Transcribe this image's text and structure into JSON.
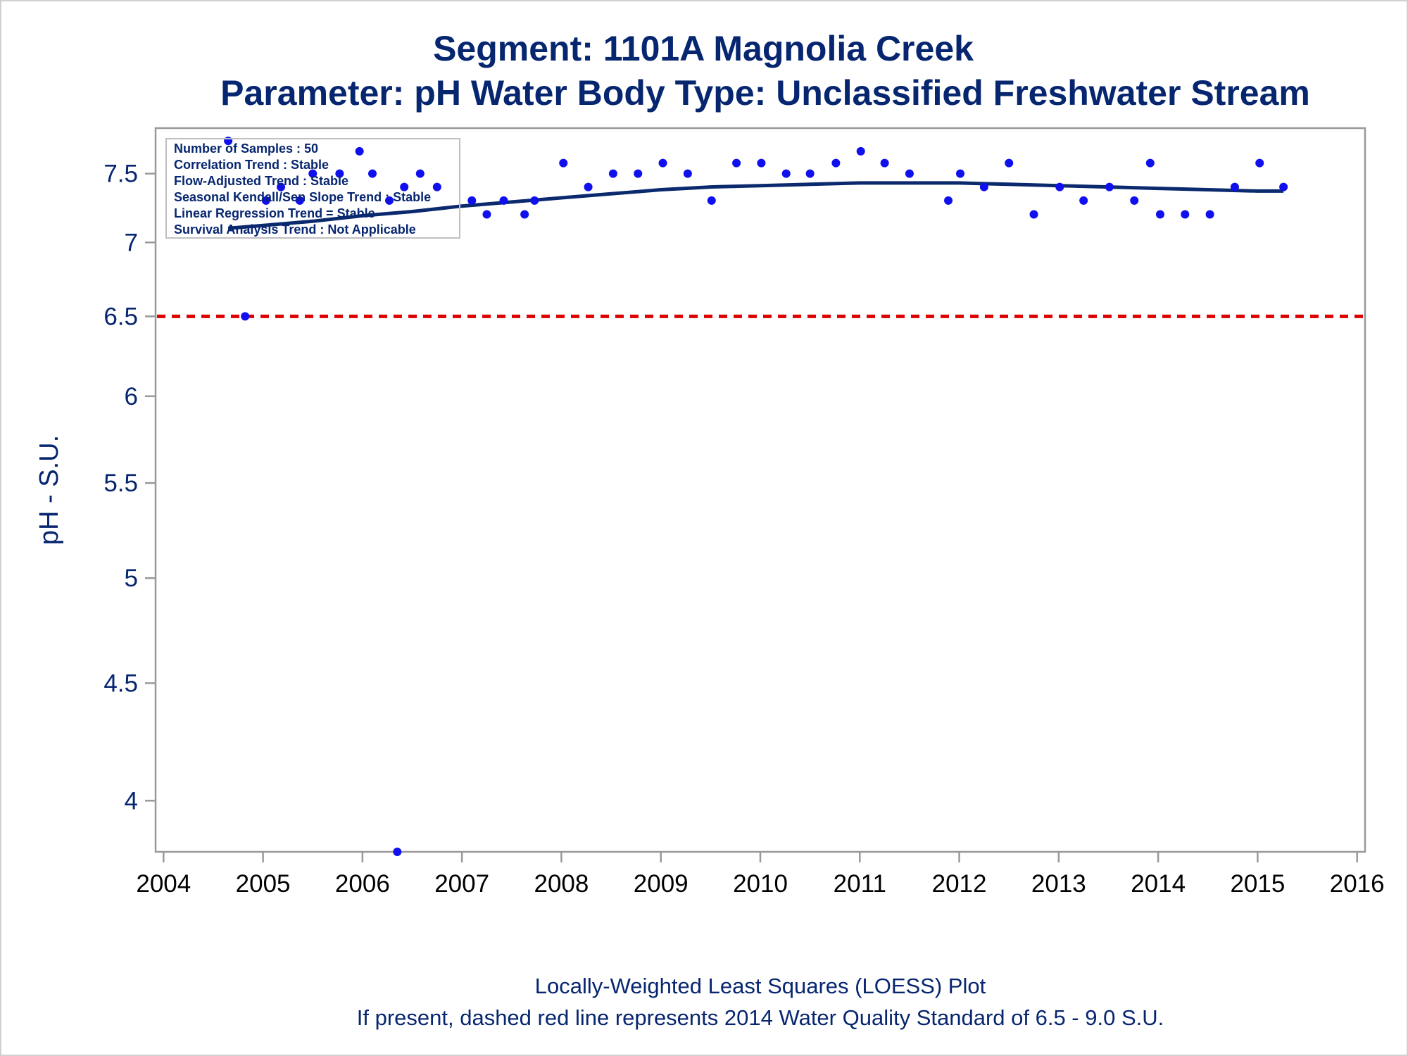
{
  "title_line1": "Segment: 1101A  Magnolia Creek",
  "title_line2": "Parameter: pH   Water Body Type: Unclassified Freshwater Stream",
  "footnote_line1": "Locally-Weighted Least Squares (LOESS) Plot",
  "footnote_line2": "If present, dashed red line represents 2014 Water Quality Standard of 6.5 - 9.0 S.U.",
  "stats": [
    "Number of Samples : 50",
    "Correlation Trend : Stable",
    "Flow-Adjusted Trend : Stable",
    "Seasonal Kendall/Sen Slope Trend : Stable",
    "Linear Regression Trend = Stable",
    "Survival Analysis Trend : Not Applicable"
  ],
  "colors": {
    "text": "#072670",
    "points": "#1010ee",
    "loess": "#0b2a6e",
    "standard_line": "#dd0000",
    "axis": "#999999",
    "x_tick_text": "#000000"
  },
  "chart_data": {
    "type": "scatter",
    "xlabel": "",
    "ylabel": "pH - S.U.",
    "y_scale": "log",
    "xlim": [
      2003.92,
      2016.08
    ],
    "ylim": [
      3.8,
      7.85
    ],
    "x_ticks": [
      2004,
      2005,
      2006,
      2007,
      2008,
      2009,
      2010,
      2011,
      2012,
      2013,
      2014,
      2015,
      2016
    ],
    "y_ticks": [
      4,
      4.5,
      5,
      5.5,
      6,
      6.5,
      7,
      7.5
    ],
    "grid": false,
    "legend": "top-left",
    "standard_line": {
      "y": 6.5,
      "style": "dashed"
    },
    "series": [
      {
        "kind": "points",
        "x": [
          2004.65,
          2004.82,
          2005.03,
          2005.18,
          2005.37,
          2005.5,
          2005.77,
          2005.97,
          2006.1,
          2006.27,
          2006.35,
          2006.42,
          2006.58,
          2006.75,
          2007.1,
          2007.25,
          2007.42,
          2007.63,
          2007.73,
          2008.02,
          2008.27,
          2008.52,
          2008.77,
          2009.02,
          2009.27,
          2009.51,
          2009.76,
          2010.01,
          2010.26,
          2010.5,
          2010.76,
          2011.01,
          2011.25,
          2011.5,
          2011.89,
          2012.01,
          2012.25,
          2012.5,
          2012.75,
          2013.01,
          2013.25,
          2013.51,
          2013.76,
          2013.92,
          2014.02,
          2014.27,
          2014.52,
          2014.77,
          2015.02,
          2015.26
        ],
        "y": [
          7.75,
          6.5,
          7.3,
          7.4,
          7.3,
          7.5,
          7.5,
          7.67,
          7.5,
          7.3,
          3.8,
          7.4,
          7.5,
          7.4,
          7.3,
          7.2,
          7.3,
          7.2,
          7.3,
          7.58,
          7.4,
          7.5,
          7.5,
          7.58,
          7.5,
          7.3,
          7.58,
          7.58,
          7.5,
          7.5,
          7.58,
          7.67,
          7.58,
          7.5,
          7.3,
          7.5,
          7.4,
          7.58,
          7.2,
          7.4,
          7.3,
          7.4,
          7.3,
          7.58,
          7.2,
          7.2,
          7.2,
          7.4,
          7.58,
          7.4
        ]
      },
      {
        "kind": "loess",
        "x": [
          2004.65,
          2005.0,
          2005.5,
          2006.0,
          2006.5,
          2007.0,
          2007.5,
          2008.0,
          2008.5,
          2009.0,
          2009.5,
          2010.0,
          2010.5,
          2011.0,
          2011.5,
          2012.0,
          2012.5,
          2013.0,
          2013.5,
          2014.0,
          2014.5,
          2015.0,
          2015.26
        ],
        "y": [
          7.1,
          7.12,
          7.15,
          7.19,
          7.22,
          7.26,
          7.29,
          7.32,
          7.35,
          7.38,
          7.4,
          7.41,
          7.42,
          7.43,
          7.43,
          7.43,
          7.42,
          7.41,
          7.4,
          7.39,
          7.38,
          7.37,
          7.37
        ]
      }
    ]
  }
}
